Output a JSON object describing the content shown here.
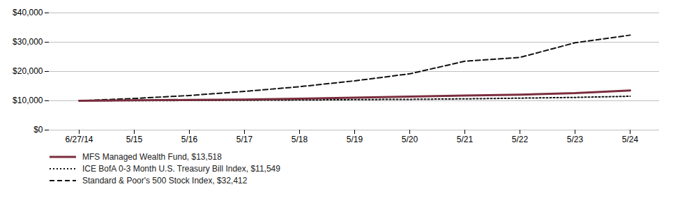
{
  "chart_data": {
    "type": "line",
    "categories": [
      "6/27/14",
      "5/15",
      "5/16",
      "5/17",
      "5/18",
      "5/19",
      "5/20",
      "5/21",
      "5/22",
      "5/23",
      "5/24"
    ],
    "series": [
      {
        "name": "MFS Managed Wealth Fund, $13,518",
        "color": "#7b2d3e",
        "line_style": "solid",
        "values": [
          10000,
          10150,
          10300,
          10400,
          10700,
          11100,
          11400,
          11800,
          12100,
          12600,
          13518
        ]
      },
      {
        "name": "ICE BofA 0-3 Month U.S. Treasury Bill Index, $11,549",
        "color": "#111111",
        "line_style": "dotted",
        "values": [
          10000,
          10050,
          10100,
          10180,
          10280,
          10400,
          10500,
          10650,
          10900,
          11150,
          11549
        ]
      },
      {
        "name": "Standard & Poor's 500 Stock Index, $32,412",
        "color": "#111111",
        "line_style": "dashed",
        "values": [
          10000,
          10800,
          11800,
          13200,
          14800,
          16800,
          19200,
          23500,
          24800,
          29800,
          32412
        ]
      }
    ],
    "ylim": [
      0,
      40000
    ],
    "yticks": [
      {
        "value": 0,
        "label": "$0"
      },
      {
        "value": 10000,
        "label": "$10,000"
      },
      {
        "value": 20000,
        "label": "$20,000"
      },
      {
        "value": 30000,
        "label": "$30,000"
      },
      {
        "value": 40000,
        "label": "$40,000"
      }
    ],
    "grid": true,
    "legend": "bottom"
  }
}
